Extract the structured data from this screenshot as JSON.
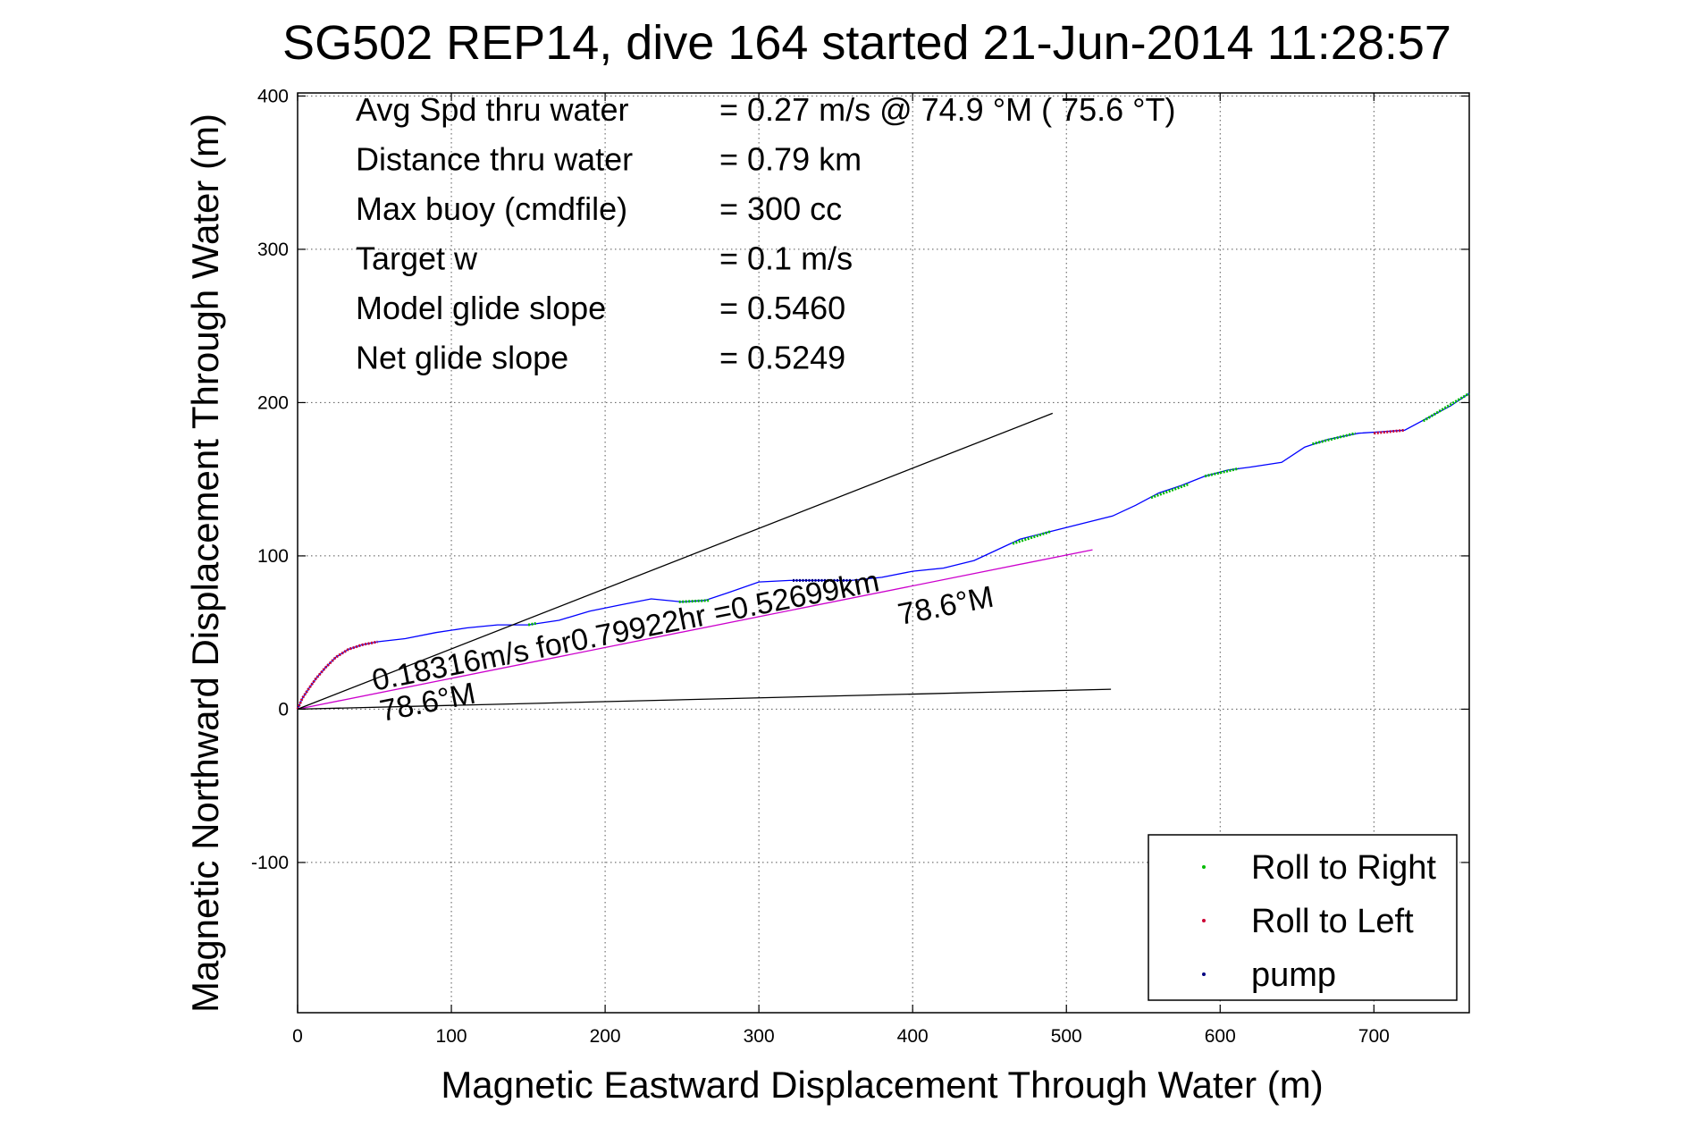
{
  "chart_data": {
    "type": "line",
    "title": "SG502 REP14, dive 164 started 21-Jun-2014 11:28:57",
    "xlabel": "Magnetic Eastward Displacement Through Water (m)",
    "ylabel": "Magnetic Northward Displacement Through Water (m)",
    "xlim": [
      0,
      762
    ],
    "ylim": [
      -198,
      402
    ],
    "xticks": [
      0,
      100,
      200,
      300,
      400,
      500,
      600,
      700
    ],
    "yticks": [
      -100,
      0,
      100,
      200,
      300,
      400
    ],
    "grid": true,
    "legend_position": "bottom-right",
    "info_lines": [
      {
        "label": "Avg Spd thru water",
        "value": "=  0.27 m/s @  74.9 °M ( 75.6 °T)"
      },
      {
        "label": "Distance thru water",
        "value": "=  0.79 km"
      },
      {
        "label": "Max buoy (cmdfile)",
        "value": "= 300 cc"
      },
      {
        "label": "Target w",
        "value": "= 0.1 m/s"
      },
      {
        "label": "Model glide slope",
        "value": "= 0.5460"
      },
      {
        "label": "Net glide slope",
        "value": "= 0.5249"
      }
    ],
    "annotations": [
      {
        "text": "0.18316m/s for0.79922hr =0.52699km",
        "x": 50,
        "y": 12,
        "angle_deg": 11.2
      },
      {
        "text": "78.6°M",
        "x": 55,
        "y": -8,
        "angle_deg": 11.2
      },
      {
        "text": "78.6°M",
        "x": 392,
        "y": 55,
        "angle_deg": 11.2
      }
    ],
    "series": [
      {
        "color": "#0000ff",
        "points": [
          [
            0,
            0
          ],
          [
            3,
            7
          ],
          [
            7,
            13
          ],
          [
            12,
            20
          ],
          [
            18,
            27
          ],
          [
            25,
            34
          ],
          [
            33,
            39
          ],
          [
            42,
            42
          ],
          [
            52,
            44
          ],
          [
            70,
            46
          ],
          [
            90,
            50
          ],
          [
            110,
            53
          ],
          [
            130,
            55
          ],
          [
            150,
            55
          ],
          [
            170,
            58
          ],
          [
            190,
            64
          ],
          [
            210,
            68
          ],
          [
            230,
            72
          ],
          [
            250,
            70
          ],
          [
            265,
            71
          ],
          [
            280,
            76
          ],
          [
            300,
            83
          ],
          [
            320,
            84
          ],
          [
            340,
            84
          ],
          [
            360,
            84
          ],
          [
            380,
            86
          ],
          [
            400,
            90
          ],
          [
            420,
            92
          ],
          [
            440,
            97
          ],
          [
            455,
            104
          ],
          [
            470,
            111
          ],
          [
            490,
            116
          ],
          [
            510,
            121
          ],
          [
            530,
            126
          ],
          [
            545,
            133
          ],
          [
            560,
            141
          ],
          [
            575,
            146
          ],
          [
            590,
            152
          ],
          [
            605,
            156
          ],
          [
            620,
            158
          ],
          [
            640,
            161
          ],
          [
            655,
            171
          ],
          [
            670,
            176
          ],
          [
            690,
            180
          ],
          [
            705,
            181
          ],
          [
            720,
            182
          ],
          [
            735,
            190
          ],
          [
            750,
            198
          ],
          [
            762,
            206
          ]
        ]
      },
      {
        "name": "Roll to Right",
        "color": "#00bb00",
        "segments": [
          [
            [
              150,
              55
            ],
            [
              155,
              56
            ]
          ],
          [
            [
              248,
              70
            ],
            [
              268,
              71
            ]
          ],
          [
            [
              465,
              108
            ],
            [
              490,
              116
            ]
          ],
          [
            [
              555,
              138
            ],
            [
              580,
              147
            ]
          ],
          [
            [
              590,
              152
            ],
            [
              612,
              157
            ]
          ],
          [
            [
              660,
              173
            ],
            [
              688,
              180
            ]
          ],
          [
            [
              732,
              188
            ],
            [
              762,
              206
            ]
          ]
        ]
      },
      {
        "name": "Roll to Left",
        "color": "#cc0033",
        "segments": [
          [
            [
              0,
              0
            ],
            [
              3,
              7
            ],
            [
              7,
              13
            ],
            [
              12,
              20
            ],
            [
              18,
              27
            ],
            [
              25,
              34
            ],
            [
              33,
              39
            ],
            [
              42,
              42
            ],
            [
              52,
              44
            ]
          ],
          [
            [
              700,
              180
            ],
            [
              720,
              182
            ]
          ]
        ]
      },
      {
        "name": "pump",
        "color": "#000080",
        "segments": [
          [
            [
              322,
              84
            ],
            [
              360,
              84
            ]
          ]
        ]
      },
      {
        "color": "#cc00cc",
        "points": [
          [
            0,
            0
          ],
          [
            517,
            104
          ]
        ]
      },
      {
        "color": "#000000",
        "points": [
          [
            0,
            0
          ],
          [
            491,
            193
          ]
        ]
      },
      {
        "color": "#000000",
        "points": [
          [
            0,
            0
          ],
          [
            529,
            13
          ]
        ]
      }
    ]
  }
}
